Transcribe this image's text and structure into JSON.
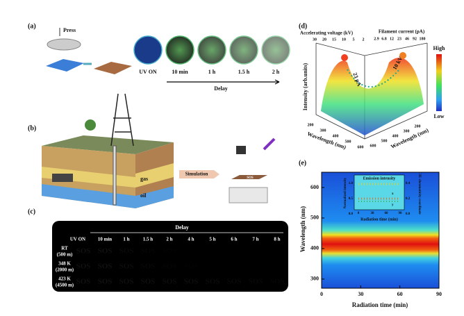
{
  "panel_a": {
    "label": "(a)",
    "press": "Press",
    "badges": [
      "UV ON",
      "10 min",
      "1 h",
      "1.5 h",
      "2 h"
    ],
    "delay": "Delay"
  },
  "panel_b": {
    "label": "(b)",
    "gas": "gas",
    "oil": "oil",
    "simulation": "Simulation",
    "device_text": "SOS"
  },
  "panel_c": {
    "label": "(c)",
    "delay": "Delay",
    "columns": [
      "UV ON",
      "10 min",
      "1 h",
      "1.5 h",
      "2 h",
      "4 h",
      "5 h",
      "6 h",
      "7 h",
      "8 h"
    ],
    "rows": [
      {
        "temp": "RT",
        "depth": "(500 m)"
      },
      {
        "temp": "348 K",
        "depth": "(2000 m)"
      },
      {
        "temp": "423 K",
        "depth": "(4500 m)"
      }
    ],
    "cell_text": "SOS"
  },
  "panel_d": {
    "label": "(d)",
    "top_left_axis": "Accelerating voltage (kV)",
    "top_left_ticks": [
      30,
      20,
      15,
      10,
      5,
      2
    ],
    "top_right_axis": "Filament current (pA)",
    "top_right_ticks": [
      2.9,
      6.8,
      12,
      23,
      46,
      92,
      180
    ],
    "z_axis": "Intensity (arb.units)",
    "left_axis": "Wavelength (nm)",
    "left_ticks": [
      200,
      300,
      400,
      500,
      600
    ],
    "right_axis": "Wavelength (nm)",
    "right_ticks": [
      600,
      500,
      400,
      300,
      200
    ],
    "current_note": "23 pA",
    "voltage_note": "10 kV",
    "colorbar_high": "High",
    "colorbar_low": "Low"
  },
  "panel_e": {
    "label": "(e)",
    "y_axis": "Wavelength (nm)",
    "x_axis": "Radiation time (min)",
    "yticks": [
      600,
      500,
      400,
      300
    ],
    "xticks": [
      0,
      30,
      60,
      90
    ],
    "inset": {
      "title": "Emission intensity",
      "left_axis": "Normalized intensity",
      "right_axis": "CIE chromaticity coordinate",
      "left_ticks": [
        "1.0",
        "0.5",
        "0.0"
      ],
      "right_ticks": [
        "0.4",
        "0.2",
        "0.0"
      ],
      "xticks": [
        0,
        30,
        60,
        90
      ],
      "x_axis": "Radiation time (min)",
      "x_label": "x",
      "y_label": "y"
    }
  }
}
